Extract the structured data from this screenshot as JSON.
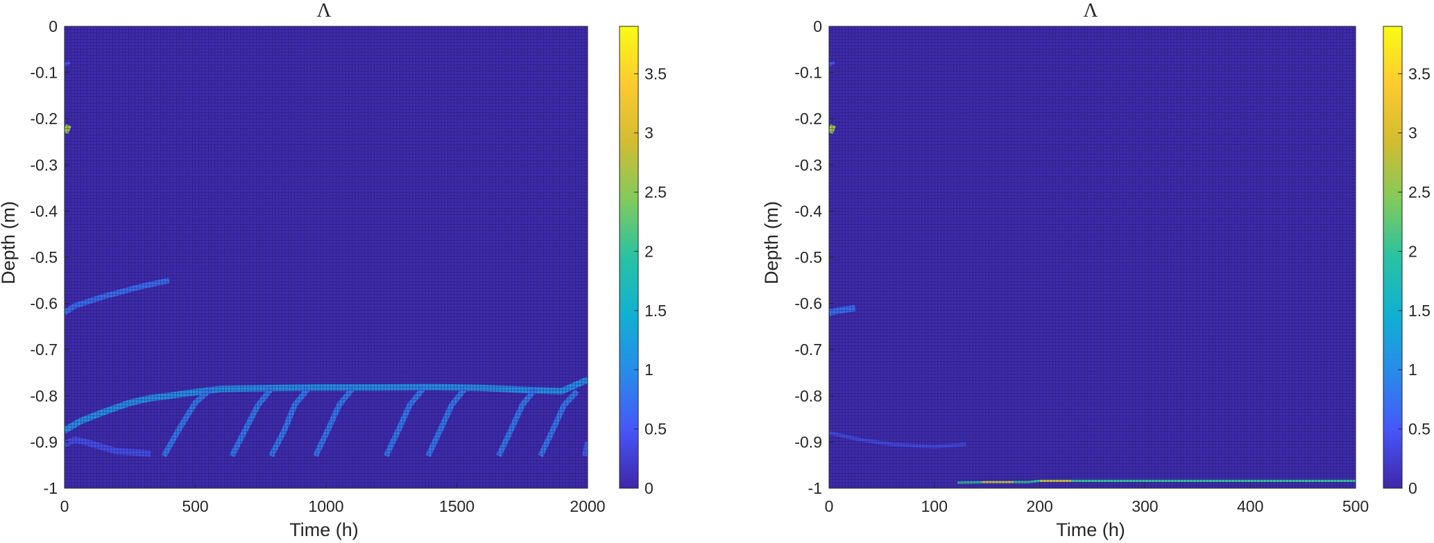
{
  "chart_data": [
    {
      "type": "heatmap",
      "title": "Λ",
      "xlabel": "Time (h)",
      "ylabel": "Depth (m)",
      "xlim": [
        0,
        2000
      ],
      "ylim": [
        -1,
        0
      ],
      "xticks": [
        0,
        500,
        1000,
        1500,
        2000
      ],
      "xtick_labels": [
        "0",
        "500",
        "1000",
        "1500",
        "2000"
      ],
      "yticks": [
        0,
        -0.1,
        -0.2,
        -0.3,
        -0.4,
        -0.5,
        -0.6,
        -0.7,
        -0.8,
        -0.9,
        -1
      ],
      "ytick_labels": [
        "0",
        "-0.1",
        "-0.2",
        "-0.3",
        "-0.4",
        "-0.5",
        "-0.6",
        "-0.7",
        "-0.8",
        "-0.9",
        "-1"
      ],
      "colorbar": {
        "range": [
          0,
          3.9
        ],
        "ticks": [
          0,
          0.5,
          1,
          1.5,
          2,
          2.5,
          3,
          3.5
        ],
        "tick_labels": [
          "0",
          "0.5",
          "1",
          "1.5",
          "2",
          "2.5",
          "3",
          "3.5"
        ],
        "colormap": "parula"
      },
      "background_value": 0.05,
      "grid": "dense cell edges",
      "features": [
        {
          "kind": "band",
          "points": [
            [
              0,
              -0.083
            ],
            [
              20,
              -0.078
            ]
          ],
          "value": 0.5,
          "thickness": 0.007
        },
        {
          "kind": "band",
          "points": [
            [
              0,
              -0.22
            ],
            [
              20,
              -0.225
            ]
          ],
          "value": 2.6,
          "thickness": 0.018
        },
        {
          "kind": "band",
          "points": [
            [
              0,
              -0.62
            ],
            [
              40,
              -0.605
            ],
            [
              150,
              -0.585
            ],
            [
              280,
              -0.565
            ],
            [
              400,
              -0.55
            ]
          ],
          "value": 0.7,
          "thickness": 0.012
        },
        {
          "kind": "band",
          "points": [
            [
              0,
              -0.875
            ],
            [
              60,
              -0.855
            ],
            [
              150,
              -0.835
            ],
            [
              250,
              -0.815
            ],
            [
              330,
              -0.805
            ],
            [
              400,
              -0.8
            ],
            [
              500,
              -0.792
            ],
            [
              600,
              -0.785
            ],
            [
              800,
              -0.783
            ],
            [
              1000,
              -0.782
            ],
            [
              1200,
              -0.782
            ],
            [
              1400,
              -0.781
            ],
            [
              1600,
              -0.783
            ],
            [
              1800,
              -0.788
            ],
            [
              1900,
              -0.79
            ],
            [
              2000,
              -0.765
            ]
          ],
          "value": 1.0,
          "thickness": 0.014
        },
        {
          "kind": "band",
          "points": [
            [
              0,
              -0.905
            ],
            [
              40,
              -0.895
            ],
            [
              80,
              -0.9
            ],
            [
              200,
              -0.92
            ],
            [
              330,
              -0.925
            ]
          ],
          "value": 0.4,
          "thickness": 0.014
        },
        {
          "kind": "band",
          "points": [
            [
              380,
              -0.93
            ],
            [
              440,
              -0.87
            ],
            [
              500,
              -0.815
            ],
            [
              560,
              -0.785
            ]
          ],
          "value": 0.8,
          "thickness": 0.012
        },
        {
          "kind": "band",
          "points": [
            [
              640,
              -0.93
            ],
            [
              690,
              -0.875
            ],
            [
              740,
              -0.82
            ],
            [
              790,
              -0.785
            ]
          ],
          "value": 0.8,
          "thickness": 0.012
        },
        {
          "kind": "band",
          "points": [
            [
              790,
              -0.93
            ],
            [
              840,
              -0.875
            ],
            [
              880,
              -0.82
            ],
            [
              930,
              -0.785
            ]
          ],
          "value": 0.8,
          "thickness": 0.012
        },
        {
          "kind": "band",
          "points": [
            [
              960,
              -0.93
            ],
            [
              1010,
              -0.87
            ],
            [
              1050,
              -0.82
            ],
            [
              1100,
              -0.785
            ]
          ],
          "value": 0.8,
          "thickness": 0.012
        },
        {
          "kind": "band",
          "points": [
            [
              1230,
              -0.93
            ],
            [
              1280,
              -0.87
            ],
            [
              1320,
              -0.82
            ],
            [
              1370,
              -0.785
            ]
          ],
          "value": 0.8,
          "thickness": 0.012
        },
        {
          "kind": "band",
          "points": [
            [
              1390,
              -0.93
            ],
            [
              1440,
              -0.87
            ],
            [
              1480,
              -0.82
            ],
            [
              1530,
              -0.785
            ]
          ],
          "value": 0.8,
          "thickness": 0.012
        },
        {
          "kind": "band",
          "points": [
            [
              1660,
              -0.93
            ],
            [
              1710,
              -0.87
            ],
            [
              1750,
              -0.82
            ],
            [
              1800,
              -0.785
            ]
          ],
          "value": 0.8,
          "thickness": 0.012
        },
        {
          "kind": "band",
          "points": [
            [
              1820,
              -0.93
            ],
            [
              1870,
              -0.87
            ],
            [
              1910,
              -0.82
            ],
            [
              1960,
              -0.79
            ]
          ],
          "value": 0.8,
          "thickness": 0.012
        },
        {
          "kind": "band",
          "points": [
            [
              1990,
              -0.93
            ],
            [
              2000,
              -0.9
            ]
          ],
          "value": 0.6,
          "thickness": 0.012
        }
      ]
    },
    {
      "type": "heatmap",
      "title": "Λ",
      "xlabel": "Time (h)",
      "ylabel": "Depth (m)",
      "xlim": [
        0,
        500
      ],
      "ylim": [
        -1,
        0
      ],
      "xticks": [
        0,
        100,
        200,
        300,
        400,
        500
      ],
      "xtick_labels": [
        "0",
        "100",
        "200",
        "300",
        "400",
        "500"
      ],
      "yticks": [
        0,
        -0.1,
        -0.2,
        -0.3,
        -0.4,
        -0.5,
        -0.6,
        -0.7,
        -0.8,
        -0.9,
        -1
      ],
      "ytick_labels": [
        "0",
        "-0.1",
        "-0.2",
        "-0.3",
        "-0.4",
        "-0.5",
        "-0.6",
        "-0.7",
        "-0.8",
        "-0.9",
        "-1"
      ],
      "colorbar": {
        "range": [
          0,
          3.9
        ],
        "ticks": [
          0,
          0.5,
          1,
          1.5,
          2,
          2.5,
          3,
          3.5
        ],
        "tick_labels": [
          "0",
          "0.5",
          "1",
          "1.5",
          "2",
          "2.5",
          "3",
          "3.5"
        ],
        "colormap": "parula"
      },
      "background_value": 0.05,
      "grid": "dense cell edges",
      "features": [
        {
          "kind": "band",
          "points": [
            [
              0,
              -0.083
            ],
            [
              5,
              -0.078
            ]
          ],
          "value": 0.5,
          "thickness": 0.007
        },
        {
          "kind": "band",
          "points": [
            [
              0,
              -0.22
            ],
            [
              5,
              -0.225
            ]
          ],
          "value": 2.6,
          "thickness": 0.018
        },
        {
          "kind": "band",
          "points": [
            [
              0,
              -0.62
            ],
            [
              10,
              -0.615
            ],
            [
              25,
              -0.61
            ]
          ],
          "value": 0.7,
          "thickness": 0.014
        },
        {
          "kind": "band",
          "points": [
            [
              0,
              -0.88
            ],
            [
              30,
              -0.895
            ],
            [
              60,
              -0.905
            ],
            [
              100,
              -0.91
            ],
            [
              130,
              -0.905
            ]
          ],
          "value": 0.35,
          "thickness": 0.008
        },
        {
          "kind": "band",
          "points": [
            [
              122,
              -0.988
            ],
            [
              150,
              -0.987
            ],
            [
              190,
              -0.987
            ],
            [
              200,
              -0.984
            ],
            [
              300,
              -0.984
            ],
            [
              400,
              -0.984
            ],
            [
              500,
              -0.984
            ]
          ],
          "value": 2.0,
          "thickness": 0.005
        },
        {
          "kind": "band",
          "points": [
            [
              145,
              -0.987
            ],
            [
              175,
              -0.987
            ]
          ],
          "value": 3.2,
          "thickness": 0.004
        },
        {
          "kind": "band",
          "points": [
            [
              200,
              -0.984
            ],
            [
              230,
              -0.984
            ]
          ],
          "value": 3.0,
          "thickness": 0.004
        }
      ]
    }
  ]
}
